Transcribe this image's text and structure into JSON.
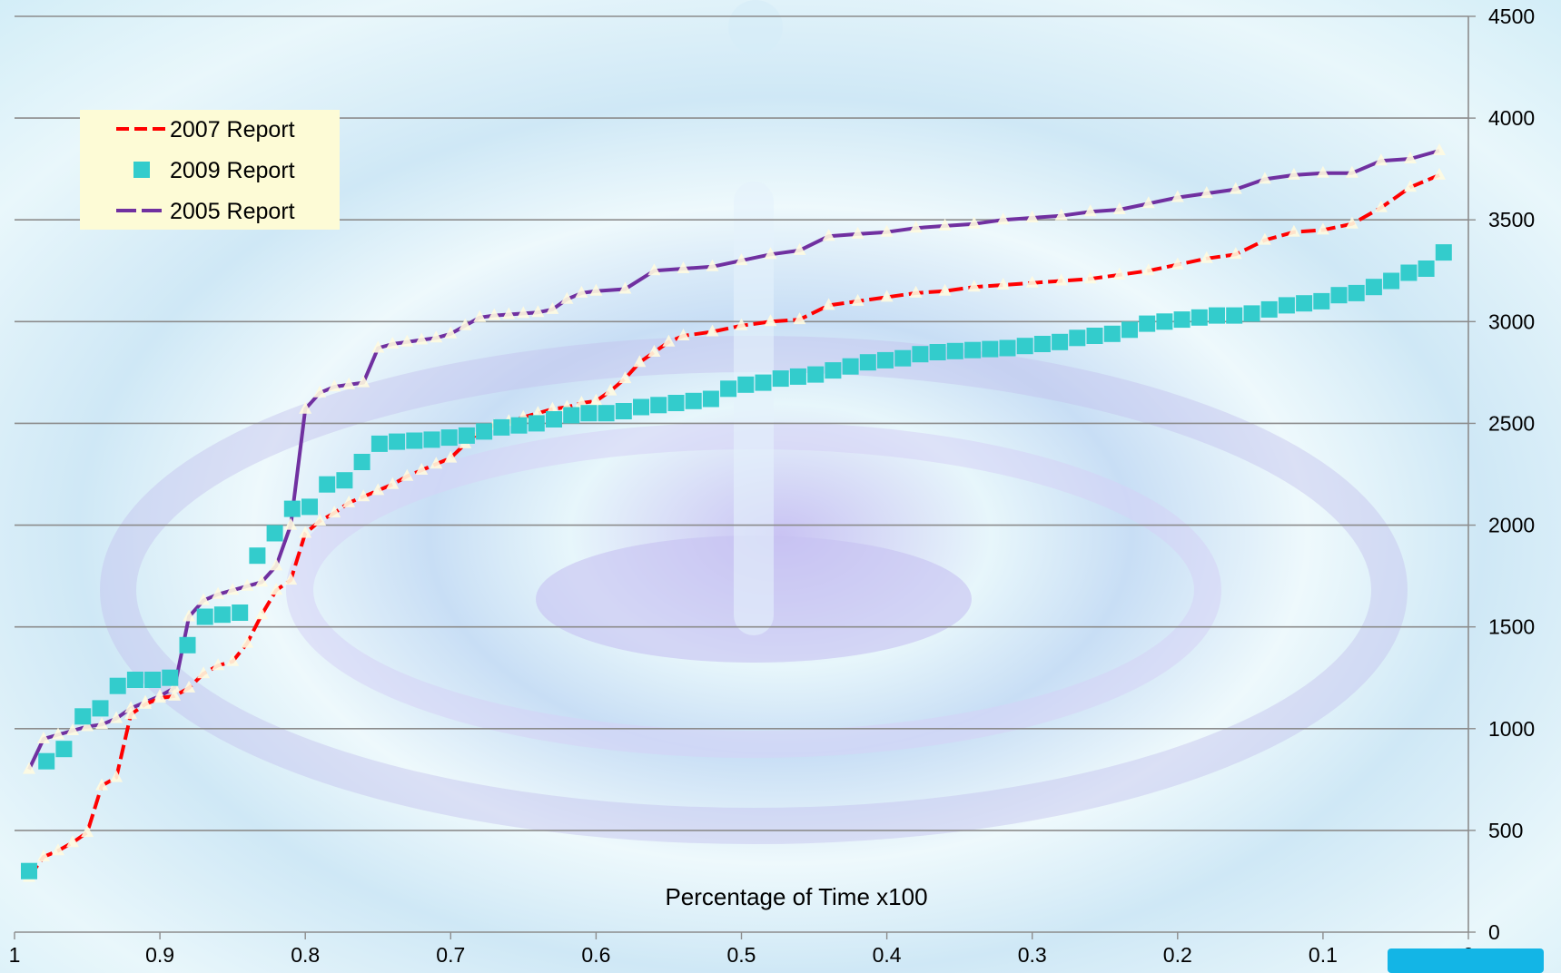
{
  "chart_data": {
    "type": "line",
    "title": "",
    "xlabel": "Percentage of Time x100",
    "ylabel": "",
    "x_axis_reversed": true,
    "xlim": [
      1,
      0
    ],
    "ylim": [
      0,
      4500
    ],
    "grid": true,
    "legend_position": "top-left",
    "x_ticks": [
      "1",
      "0.9",
      "0.8",
      "0.7",
      "0.6",
      "0.5",
      "0.4",
      "0.3",
      "0.2",
      "0.1",
      "0"
    ],
    "y_ticks": [
      "0",
      "500",
      "1000",
      "1500",
      "2000",
      "2500",
      "3000",
      "3500",
      "4000",
      "4500"
    ],
    "series": [
      {
        "name": "2007 Report",
        "color": "#ff0000",
        "style": "dashed",
        "x": [
          0.99,
          0.98,
          0.97,
          0.96,
          0.95,
          0.94,
          0.93,
          0.92,
          0.91,
          0.9,
          0.89,
          0.88,
          0.87,
          0.86,
          0.85,
          0.84,
          0.83,
          0.82,
          0.81,
          0.8,
          0.79,
          0.78,
          0.77,
          0.76,
          0.75,
          0.74,
          0.73,
          0.72,
          0.71,
          0.7,
          0.69,
          0.68,
          0.67,
          0.66,
          0.65,
          0.64,
          0.63,
          0.62,
          0.61,
          0.6,
          0.59,
          0.58,
          0.57,
          0.56,
          0.55,
          0.54,
          0.52,
          0.5,
          0.48,
          0.46,
          0.44,
          0.42,
          0.4,
          0.38,
          0.36,
          0.34,
          0.32,
          0.3,
          0.28,
          0.26,
          0.24,
          0.22,
          0.2,
          0.18,
          0.16,
          0.14,
          0.12,
          0.1,
          0.08,
          0.06,
          0.04,
          0.02
        ],
        "values": [
          270,
          370,
          400,
          440,
          490,
          720,
          760,
          1070,
          1120,
          1150,
          1160,
          1200,
          1270,
          1310,
          1330,
          1420,
          1560,
          1680,
          1730,
          1960,
          2020,
          2060,
          2110,
          2140,
          2170,
          2200,
          2240,
          2270,
          2300,
          2330,
          2400,
          2460,
          2490,
          2510,
          2530,
          2550,
          2570,
          2580,
          2600,
          2610,
          2660,
          2720,
          2800,
          2850,
          2900,
          2930,
          2950,
          2980,
          3000,
          3010,
          3080,
          3100,
          3120,
          3140,
          3150,
          3170,
          3180,
          3190,
          3200,
          3210,
          3230,
          3250,
          3280,
          3310,
          3330,
          3400,
          3440,
          3450,
          3480,
          3560,
          3660,
          3720
        ]
      },
      {
        "name": "2009 Report",
        "color": "#33cccc",
        "style": "markers",
        "x": [
          0.99,
          0.978,
          0.966,
          0.953,
          0.941,
          0.929,
          0.917,
          0.905,
          0.893,
          0.881,
          0.869,
          0.857,
          0.845,
          0.833,
          0.821,
          0.809,
          0.797,
          0.785,
          0.773,
          0.761,
          0.749,
          0.737,
          0.725,
          0.713,
          0.701,
          0.689,
          0.677,
          0.665,
          0.653,
          0.641,
          0.629,
          0.617,
          0.605,
          0.593,
          0.581,
          0.569,
          0.557,
          0.545,
          0.533,
          0.521,
          0.509,
          0.497,
          0.485,
          0.473,
          0.461,
          0.449,
          0.437,
          0.425,
          0.413,
          0.401,
          0.389,
          0.377,
          0.365,
          0.353,
          0.341,
          0.329,
          0.317,
          0.305,
          0.293,
          0.281,
          0.269,
          0.257,
          0.245,
          0.233,
          0.221,
          0.209,
          0.197,
          0.185,
          0.173,
          0.161,
          0.149,
          0.137,
          0.125,
          0.113,
          0.101,
          0.089,
          0.077,
          0.065,
          0.053,
          0.041,
          0.029,
          0.017
        ],
        "values": [
          300,
          840,
          900,
          1060,
          1100,
          1210,
          1240,
          1240,
          1250,
          1410,
          1550,
          1560,
          1570,
          1850,
          1960,
          2080,
          2090,
          2200,
          2220,
          2310,
          2400,
          2410,
          2415,
          2420,
          2430,
          2440,
          2460,
          2480,
          2490,
          2500,
          2520,
          2540,
          2550,
          2550,
          2560,
          2580,
          2590,
          2600,
          2610,
          2620,
          2670,
          2690,
          2700,
          2720,
          2730,
          2740,
          2760,
          2780,
          2800,
          2810,
          2820,
          2840,
          2850,
          2855,
          2860,
          2865,
          2870,
          2880,
          2890,
          2900,
          2920,
          2930,
          2940,
          2960,
          2990,
          3000,
          3010,
          3020,
          3030,
          3030,
          3040,
          3060,
          3080,
          3090,
          3100,
          3130,
          3140,
          3170,
          3200,
          3240,
          3260,
          3340
        ]
      },
      {
        "name": "2005 Report",
        "color": "#7030a0",
        "style": "long-dash",
        "x": [
          0.99,
          0.98,
          0.97,
          0.96,
          0.95,
          0.94,
          0.93,
          0.92,
          0.91,
          0.9,
          0.89,
          0.88,
          0.87,
          0.86,
          0.85,
          0.84,
          0.83,
          0.82,
          0.81,
          0.8,
          0.79,
          0.78,
          0.77,
          0.76,
          0.75,
          0.74,
          0.73,
          0.72,
          0.71,
          0.7,
          0.69,
          0.68,
          0.67,
          0.66,
          0.65,
          0.64,
          0.63,
          0.62,
          0.61,
          0.6,
          0.58,
          0.56,
          0.54,
          0.52,
          0.5,
          0.48,
          0.46,
          0.44,
          0.42,
          0.4,
          0.38,
          0.36,
          0.34,
          0.32,
          0.3,
          0.28,
          0.26,
          0.24,
          0.22,
          0.2,
          0.18,
          0.16,
          0.14,
          0.12,
          0.1,
          0.08,
          0.06,
          0.04,
          0.02
        ],
        "values": [
          800,
          950,
          970,
          990,
          1010,
          1020,
          1050,
          1100,
          1130,
          1160,
          1200,
          1550,
          1630,
          1660,
          1680,
          1700,
          1720,
          1800,
          2000,
          2570,
          2650,
          2680,
          2690,
          2700,
          2870,
          2890,
          2900,
          2910,
          2920,
          2940,
          2980,
          3020,
          3030,
          3035,
          3040,
          3045,
          3060,
          3110,
          3140,
          3150,
          3160,
          3250,
          3260,
          3270,
          3300,
          3330,
          3350,
          3420,
          3430,
          3440,
          3460,
          3470,
          3480,
          3500,
          3510,
          3520,
          3540,
          3550,
          3580,
          3610,
          3630,
          3650,
          3700,
          3720,
          3730,
          3730,
          3790,
          3800,
          3840
        ]
      }
    ],
    "legend": [
      {
        "label": "2007 Report",
        "color": "#ff0000",
        "marker": "dash-line"
      },
      {
        "label": "2009 Report",
        "color": "#33cccc",
        "marker": "square"
      },
      {
        "label": "2005 Report",
        "color": "#7030a0",
        "marker": "dash-line"
      }
    ]
  }
}
